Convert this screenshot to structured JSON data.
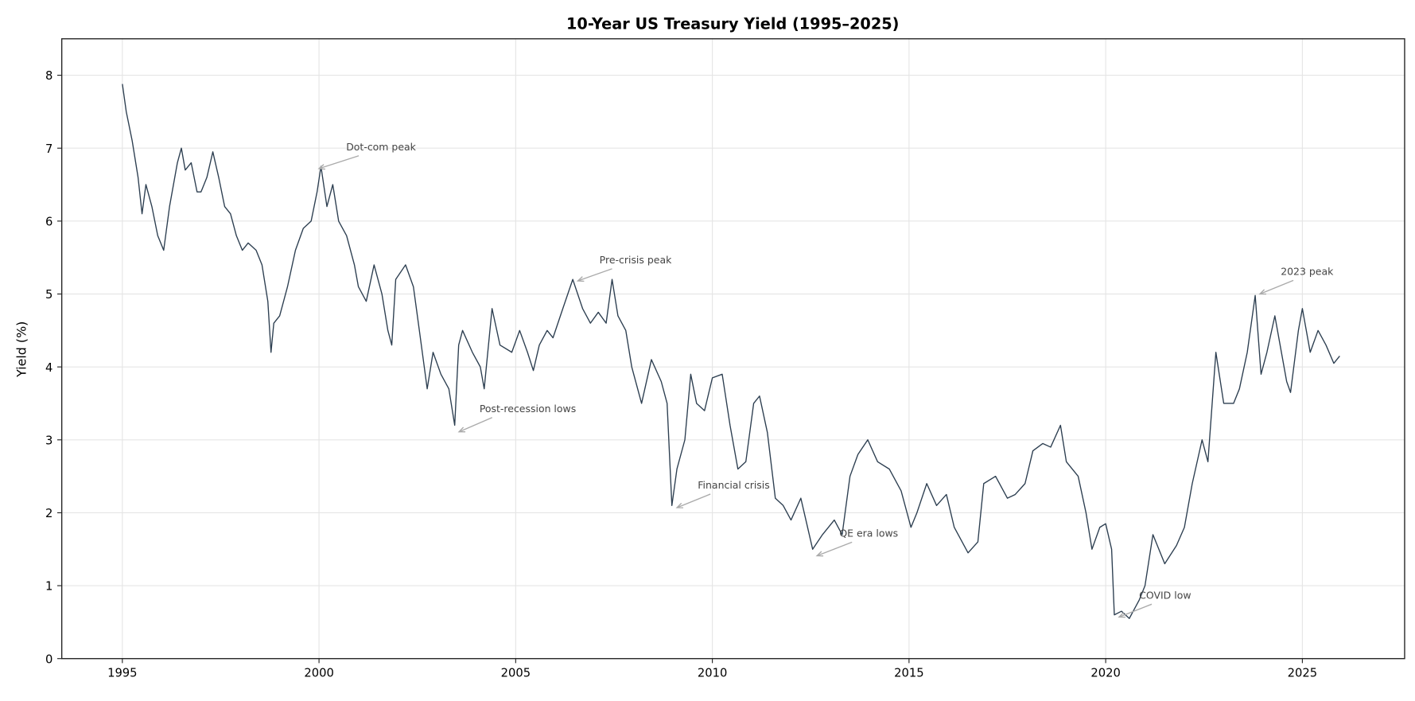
{
  "chart_data": {
    "type": "line",
    "title": "10-Year US Treasury Yield (1995–2025)",
    "xlabel": "",
    "ylabel": "Yield (%)",
    "xlim": [
      1993.46,
      2027.6
    ],
    "ylim": [
      0,
      8.5
    ],
    "xticks": [
      1995,
      2000,
      2005,
      2010,
      2015,
      2020,
      2025
    ],
    "yticks": [
      0,
      1,
      2,
      3,
      4,
      5,
      6,
      7,
      8
    ],
    "grid": true,
    "colors": {
      "line": "#2c3e50",
      "annotation_text": "#444444",
      "arrow": "#aaaaaa",
      "grid": "#e5e5e5"
    },
    "series": [
      {
        "x": [
          1995.0,
          1995.1,
          1995.25,
          1995.4,
          1995.5,
          1995.6,
          1995.75,
          1995.9,
          1996.05,
          1996.2,
          1996.4,
          1996.5,
          1996.6,
          1996.75,
          1996.9,
          1997.0,
          1997.15,
          1997.3,
          1997.45,
          1997.6,
          1997.75,
          1997.9,
          1998.05,
          1998.2,
          1998.4,
          1998.55,
          1998.7,
          1998.78,
          1998.85,
          1999.0,
          1999.2,
          1999.4,
          1999.6,
          1999.8,
          1999.95,
          2000.05,
          2000.2,
          2000.35,
          2000.5,
          2000.7,
          2000.9,
          2001.0,
          2001.2,
          2001.4,
          2001.6,
          2001.75,
          2001.85,
          2001.95,
          2002.2,
          2002.4,
          2002.55,
          2002.75,
          2002.9,
          2003.1,
          2003.3,
          2003.45,
          2003.55,
          2003.65,
          2003.9,
          2004.1,
          2004.2,
          2004.4,
          2004.6,
          2004.9,
          2005.1,
          2005.3,
          2005.45,
          2005.6,
          2005.8,
          2005.95,
          2006.2,
          2006.45,
          2006.7,
          2006.9,
          2007.1,
          2007.3,
          2007.45,
          2007.6,
          2007.8,
          2007.95,
          2008.2,
          2008.45,
          2008.7,
          2008.85,
          2008.97,
          2009.1,
          2009.3,
          2009.45,
          2009.6,
          2009.8,
          2010.0,
          2010.25,
          2010.45,
          2010.65,
          2010.85,
          2011.05,
          2011.2,
          2011.4,
          2011.6,
          2011.8,
          2012.0,
          2012.25,
          2012.55,
          2012.8,
          2013.1,
          2013.3,
          2013.5,
          2013.7,
          2013.95,
          2014.2,
          2014.5,
          2014.8,
          2015.05,
          2015.2,
          2015.45,
          2015.7,
          2015.95,
          2016.15,
          2016.5,
          2016.75,
          2016.9,
          2017.2,
          2017.5,
          2017.7,
          2017.95,
          2018.15,
          2018.4,
          2018.6,
          2018.85,
          2019.0,
          2019.3,
          2019.5,
          2019.65,
          2019.85,
          2020.0,
          2020.15,
          2020.22,
          2020.4,
          2020.6,
          2020.85,
          2021.0,
          2021.2,
          2021.5,
          2021.8,
          2022.0,
          2022.2,
          2022.45,
          2022.6,
          2022.8,
          2023.0,
          2023.25,
          2023.4,
          2023.6,
          2023.8,
          2023.95,
          2024.1,
          2024.3,
          2024.6,
          2024.7,
          2024.9,
          2025.0,
          2025.2,
          2025.4,
          2025.6,
          2025.8,
          2025.95
        ],
        "y": [
          7.88,
          7.5,
          7.1,
          6.6,
          6.1,
          6.5,
          6.2,
          5.8,
          5.6,
          6.2,
          6.8,
          7.0,
          6.7,
          6.8,
          6.4,
          6.4,
          6.6,
          6.95,
          6.6,
          6.2,
          6.1,
          5.8,
          5.6,
          5.7,
          5.6,
          5.4,
          4.9,
          4.2,
          4.6,
          4.7,
          5.1,
          5.6,
          5.9,
          6.0,
          6.4,
          6.75,
          6.2,
          6.5,
          6.0,
          5.8,
          5.4,
          5.1,
          4.9,
          5.4,
          5.0,
          4.5,
          4.3,
          5.2,
          5.4,
          5.1,
          4.5,
          3.7,
          4.2,
          3.9,
          3.7,
          3.2,
          4.3,
          4.5,
          4.2,
          4.0,
          3.7,
          4.8,
          4.3,
          4.2,
          4.5,
          4.2,
          3.95,
          4.3,
          4.5,
          4.4,
          4.8,
          5.2,
          4.8,
          4.6,
          4.75,
          4.6,
          5.2,
          4.7,
          4.5,
          4.0,
          3.5,
          4.1,
          3.8,
          3.5,
          2.1,
          2.6,
          3.0,
          3.9,
          3.5,
          3.4,
          3.85,
          3.9,
          3.2,
          2.6,
          2.7,
          3.5,
          3.6,
          3.1,
          2.2,
          2.1,
          1.9,
          2.2,
          1.5,
          1.7,
          1.9,
          1.7,
          2.5,
          2.8,
          3.0,
          2.7,
          2.6,
          2.3,
          1.8,
          2.0,
          2.4,
          2.1,
          2.25,
          1.8,
          1.45,
          1.6,
          2.4,
          2.5,
          2.2,
          2.25,
          2.4,
          2.85,
          2.95,
          2.9,
          3.2,
          2.7,
          2.5,
          2.0,
          1.5,
          1.8,
          1.85,
          1.5,
          0.6,
          0.65,
          0.55,
          0.8,
          1.0,
          1.7,
          1.3,
          1.55,
          1.8,
          2.4,
          3.0,
          2.7,
          4.2,
          3.5,
          3.5,
          3.7,
          4.2,
          4.98,
          3.9,
          4.2,
          4.7,
          3.8,
          3.65,
          4.5,
          4.8,
          4.2,
          4.5,
          4.3,
          4.05,
          4.15
        ]
      }
    ],
    "annotations": [
      {
        "text": "Dot-com peak",
        "xy": [
          2000.0,
          6.72
        ],
        "xytext": [
          2000.69,
          7.02
        ]
      },
      {
        "text": "Pre-crisis peak",
        "xy": [
          2006.58,
          5.18
        ],
        "xytext": [
          2007.13,
          5.47
        ]
      },
      {
        "text": "Post-recession lows",
        "xy": [
          2003.56,
          3.11
        ],
        "xytext": [
          2004.08,
          3.43
        ]
      },
      {
        "text": "Financial crisis",
        "xy": [
          2009.1,
          2.07
        ],
        "xytext": [
          2009.63,
          2.38
        ]
      },
      {
        "text": "QE era lows",
        "xy": [
          2012.66,
          1.41
        ],
        "xytext": [
          2013.23,
          1.72
        ]
      },
      {
        "text": "COVID low",
        "xy": [
          2020.34,
          0.57
        ],
        "xytext": [
          2020.85,
          0.87
        ]
      },
      {
        "text": "2023 peak",
        "xy": [
          2023.92,
          5.0
        ],
        "xytext": [
          2024.45,
          5.31
        ]
      }
    ]
  }
}
